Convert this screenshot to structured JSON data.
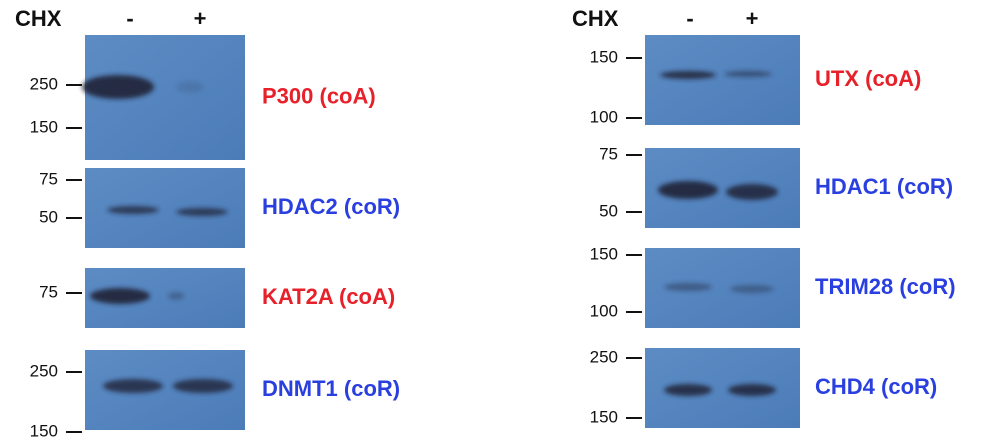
{
  "panels": [
    {
      "header": {
        "label": "CHX",
        "minus": "-",
        "plus": "+"
      },
      "blots": [
        {
          "markers": [
            250,
            150
          ],
          "label": "P300 (coA)",
          "color": "#e8202a"
        },
        {
          "markers": [
            75,
            50
          ],
          "label": "HDAC2 (coR)",
          "color": "#2a3fe0"
        },
        {
          "markers": [
            75
          ],
          "label": "KAT2A (coA)",
          "color": "#e8202a"
        },
        {
          "markers": [
            250,
            150
          ],
          "label": "DNMT1 (coR)",
          "color": "#2a3fe0"
        }
      ]
    },
    {
      "header": {
        "label": "CHX",
        "minus": "-",
        "plus": "+"
      },
      "blots": [
        {
          "markers": [
            150,
            100
          ],
          "label": "UTX (coA)",
          "color": "#e8202a"
        },
        {
          "markers": [
            75,
            50
          ],
          "label": "HDAC1 (coR)",
          "color": "#2a3fe0"
        },
        {
          "markers": [
            150,
            100
          ],
          "label": "TRIM28 (coR)",
          "color": "#2a3fe0"
        },
        {
          "markers": [
            250,
            150
          ],
          "label": "CHD4 (coR)",
          "color": "#2a3fe0"
        }
      ]
    }
  ]
}
